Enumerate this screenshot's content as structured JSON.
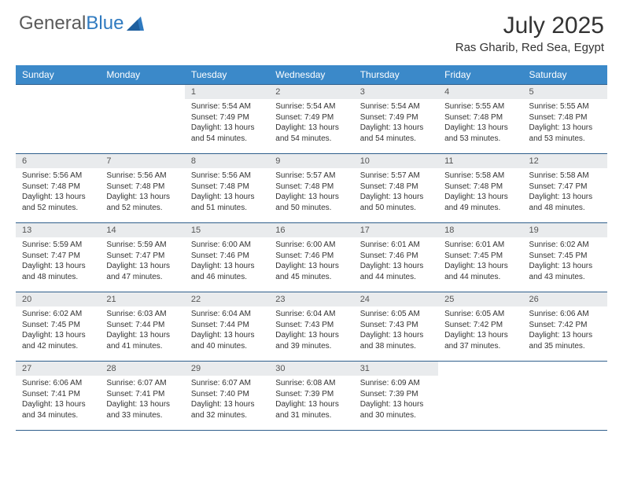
{
  "logo": {
    "word1": "General",
    "word2": "Blue"
  },
  "title": "July 2025",
  "location": "Ras Gharib, Red Sea, Egypt",
  "colors": {
    "header_bg": "#3b89c9",
    "header_fg": "#ffffff",
    "daynum_bg": "#e9ebed",
    "row_border": "#2f5f8c",
    "logo_gray": "#5a5a5a",
    "logo_blue": "#2f7ac0"
  },
  "day_headers": [
    "Sunday",
    "Monday",
    "Tuesday",
    "Wednesday",
    "Thursday",
    "Friday",
    "Saturday"
  ],
  "weeks": [
    [
      null,
      null,
      {
        "n": "1",
        "sr": "5:54 AM",
        "ss": "7:49 PM",
        "dl": "13 hours and 54 minutes."
      },
      {
        "n": "2",
        "sr": "5:54 AM",
        "ss": "7:49 PM",
        "dl": "13 hours and 54 minutes."
      },
      {
        "n": "3",
        "sr": "5:54 AM",
        "ss": "7:49 PM",
        "dl": "13 hours and 54 minutes."
      },
      {
        "n": "4",
        "sr": "5:55 AM",
        "ss": "7:48 PM",
        "dl": "13 hours and 53 minutes."
      },
      {
        "n": "5",
        "sr": "5:55 AM",
        "ss": "7:48 PM",
        "dl": "13 hours and 53 minutes."
      }
    ],
    [
      {
        "n": "6",
        "sr": "5:56 AM",
        "ss": "7:48 PM",
        "dl": "13 hours and 52 minutes."
      },
      {
        "n": "7",
        "sr": "5:56 AM",
        "ss": "7:48 PM",
        "dl": "13 hours and 52 minutes."
      },
      {
        "n": "8",
        "sr": "5:56 AM",
        "ss": "7:48 PM",
        "dl": "13 hours and 51 minutes."
      },
      {
        "n": "9",
        "sr": "5:57 AM",
        "ss": "7:48 PM",
        "dl": "13 hours and 50 minutes."
      },
      {
        "n": "10",
        "sr": "5:57 AM",
        "ss": "7:48 PM",
        "dl": "13 hours and 50 minutes."
      },
      {
        "n": "11",
        "sr": "5:58 AM",
        "ss": "7:48 PM",
        "dl": "13 hours and 49 minutes."
      },
      {
        "n": "12",
        "sr": "5:58 AM",
        "ss": "7:47 PM",
        "dl": "13 hours and 48 minutes."
      }
    ],
    [
      {
        "n": "13",
        "sr": "5:59 AM",
        "ss": "7:47 PM",
        "dl": "13 hours and 48 minutes."
      },
      {
        "n": "14",
        "sr": "5:59 AM",
        "ss": "7:47 PM",
        "dl": "13 hours and 47 minutes."
      },
      {
        "n": "15",
        "sr": "6:00 AM",
        "ss": "7:46 PM",
        "dl": "13 hours and 46 minutes."
      },
      {
        "n": "16",
        "sr": "6:00 AM",
        "ss": "7:46 PM",
        "dl": "13 hours and 45 minutes."
      },
      {
        "n": "17",
        "sr": "6:01 AM",
        "ss": "7:46 PM",
        "dl": "13 hours and 44 minutes."
      },
      {
        "n": "18",
        "sr": "6:01 AM",
        "ss": "7:45 PM",
        "dl": "13 hours and 44 minutes."
      },
      {
        "n": "19",
        "sr": "6:02 AM",
        "ss": "7:45 PM",
        "dl": "13 hours and 43 minutes."
      }
    ],
    [
      {
        "n": "20",
        "sr": "6:02 AM",
        "ss": "7:45 PM",
        "dl": "13 hours and 42 minutes."
      },
      {
        "n": "21",
        "sr": "6:03 AM",
        "ss": "7:44 PM",
        "dl": "13 hours and 41 minutes."
      },
      {
        "n": "22",
        "sr": "6:04 AM",
        "ss": "7:44 PM",
        "dl": "13 hours and 40 minutes."
      },
      {
        "n": "23",
        "sr": "6:04 AM",
        "ss": "7:43 PM",
        "dl": "13 hours and 39 minutes."
      },
      {
        "n": "24",
        "sr": "6:05 AM",
        "ss": "7:43 PM",
        "dl": "13 hours and 38 minutes."
      },
      {
        "n": "25",
        "sr": "6:05 AM",
        "ss": "7:42 PM",
        "dl": "13 hours and 37 minutes."
      },
      {
        "n": "26",
        "sr": "6:06 AM",
        "ss": "7:42 PM",
        "dl": "13 hours and 35 minutes."
      }
    ],
    [
      {
        "n": "27",
        "sr": "6:06 AM",
        "ss": "7:41 PM",
        "dl": "13 hours and 34 minutes."
      },
      {
        "n": "28",
        "sr": "6:07 AM",
        "ss": "7:41 PM",
        "dl": "13 hours and 33 minutes."
      },
      {
        "n": "29",
        "sr": "6:07 AM",
        "ss": "7:40 PM",
        "dl": "13 hours and 32 minutes."
      },
      {
        "n": "30",
        "sr": "6:08 AM",
        "ss": "7:39 PM",
        "dl": "13 hours and 31 minutes."
      },
      {
        "n": "31",
        "sr": "6:09 AM",
        "ss": "7:39 PM",
        "dl": "13 hours and 30 minutes."
      },
      null,
      null
    ]
  ],
  "labels": {
    "sunrise": "Sunrise: ",
    "sunset": "Sunset: ",
    "daylight": "Daylight: "
  }
}
